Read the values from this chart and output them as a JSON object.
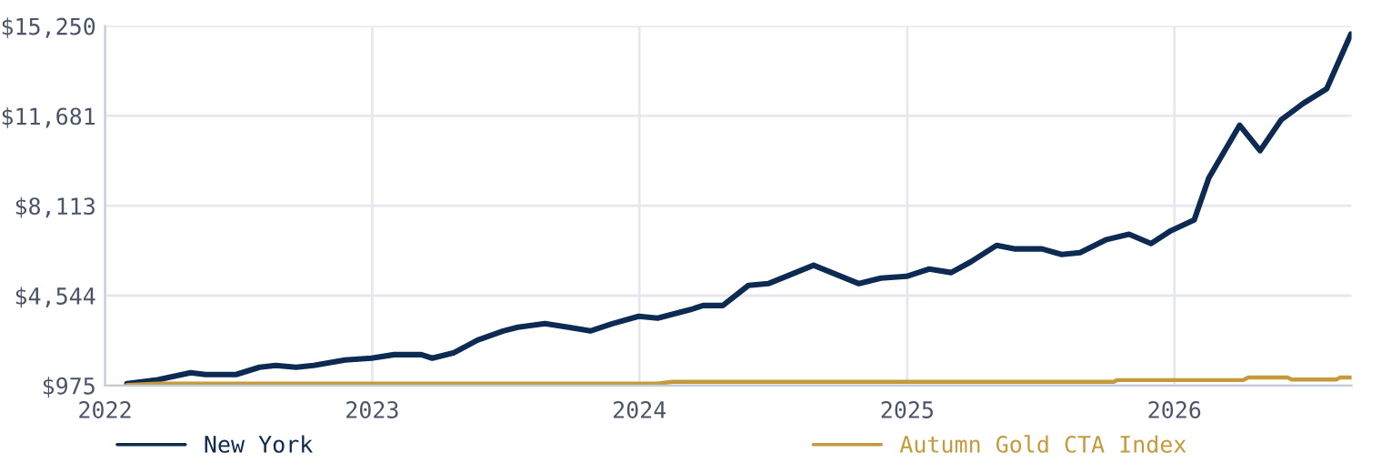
{
  "chart_data": {
    "type": "line",
    "xlim": [
      "2022-01-01",
      "2026-08-31"
    ],
    "xticks": [
      {
        "value": "2022-01-01",
        "label": "2022"
      },
      {
        "value": "2023-01-01",
        "label": "2023"
      },
      {
        "value": "2024-01-01",
        "label": "2024"
      },
      {
        "value": "2025-01-01",
        "label": "2025"
      },
      {
        "value": "2026-01-01",
        "label": "2026"
      }
    ],
    "ylim": [
      975,
      15250
    ],
    "yticks": [
      {
        "value": 975,
        "label": "$975"
      },
      {
        "value": 4544,
        "label": "$4,544"
      },
      {
        "value": 8113,
        "label": "$8,113"
      },
      {
        "value": 11681,
        "label": "$11,681"
      },
      {
        "value": 15250,
        "label": "$15,250"
      }
    ],
    "grid": true,
    "legend": "bottom",
    "marker": "none",
    "line_style": "solid",
    "series": [
      {
        "name": "New York",
        "color": "#0d2a52",
        "x": [
          "2022-01-31",
          "2022-03-14",
          "2022-04-28",
          "2022-05-18",
          "2022-06-29",
          "2022-07-31",
          "2022-08-22",
          "2022-09-19",
          "2022-10-13",
          "2022-11-25",
          "2022-12-31",
          "2023-01-31",
          "2023-03-09",
          "2023-03-24",
          "2023-04-23",
          "2023-05-25",
          "2023-06-29",
          "2023-07-19",
          "2023-08-25",
          "2023-09-26",
          "2023-10-26",
          "2023-11-25",
          "2023-12-31",
          "2024-01-26",
          "2024-03-11",
          "2024-03-28",
          "2024-04-24",
          "2024-05-29",
          "2024-06-25",
          "2024-08-26",
          "2024-10-27",
          "2024-11-26",
          "2024-12-31",
          "2025-01-31",
          "2025-03-02",
          "2025-03-29",
          "2025-05-03",
          "2025-05-27",
          "2025-07-04",
          "2025-07-31",
          "2025-08-25",
          "2025-09-29",
          "2025-10-31",
          "2025-11-30",
          "2025-12-27",
          "2026-01-28",
          "2026-02-17",
          "2026-03-31",
          "2026-04-28",
          "2026-05-27",
          "2026-06-26",
          "2026-07-28",
          "2026-08-30"
        ],
        "values": [
          1050,
          1200,
          1480,
          1410,
          1410,
          1700,
          1770,
          1700,
          1770,
          1990,
          2060,
          2200,
          2200,
          2060,
          2280,
          2780,
          3140,
          3290,
          3430,
          3290,
          3140,
          3430,
          3720,
          3650,
          3990,
          4150,
          4150,
          4950,
          5020,
          5750,
          5020,
          5240,
          5310,
          5600,
          5460,
          5890,
          6540,
          6400,
          6400,
          6180,
          6250,
          6760,
          6980,
          6610,
          7120,
          7550,
          9220,
          11310,
          10300,
          11530,
          12180,
          12760,
          14930
        ]
      },
      {
        "name": "Autumn Gold CTA Index",
        "color": "#c49a3c",
        "x": [
          "2022-01-31",
          "2022-03-14",
          "2024-01-26",
          "2024-02-15",
          "2025-10-10",
          "2025-10-15",
          "2026-04-05",
          "2026-04-12",
          "2026-06-05",
          "2026-06-10",
          "2026-08-10",
          "2026-08-15",
          "2026-08-30"
        ],
        "values": [
          1000,
          1050,
          1050,
          1120,
          1120,
          1190,
          1190,
          1290,
          1290,
          1210,
          1210,
          1290,
          1290
        ]
      }
    ]
  }
}
